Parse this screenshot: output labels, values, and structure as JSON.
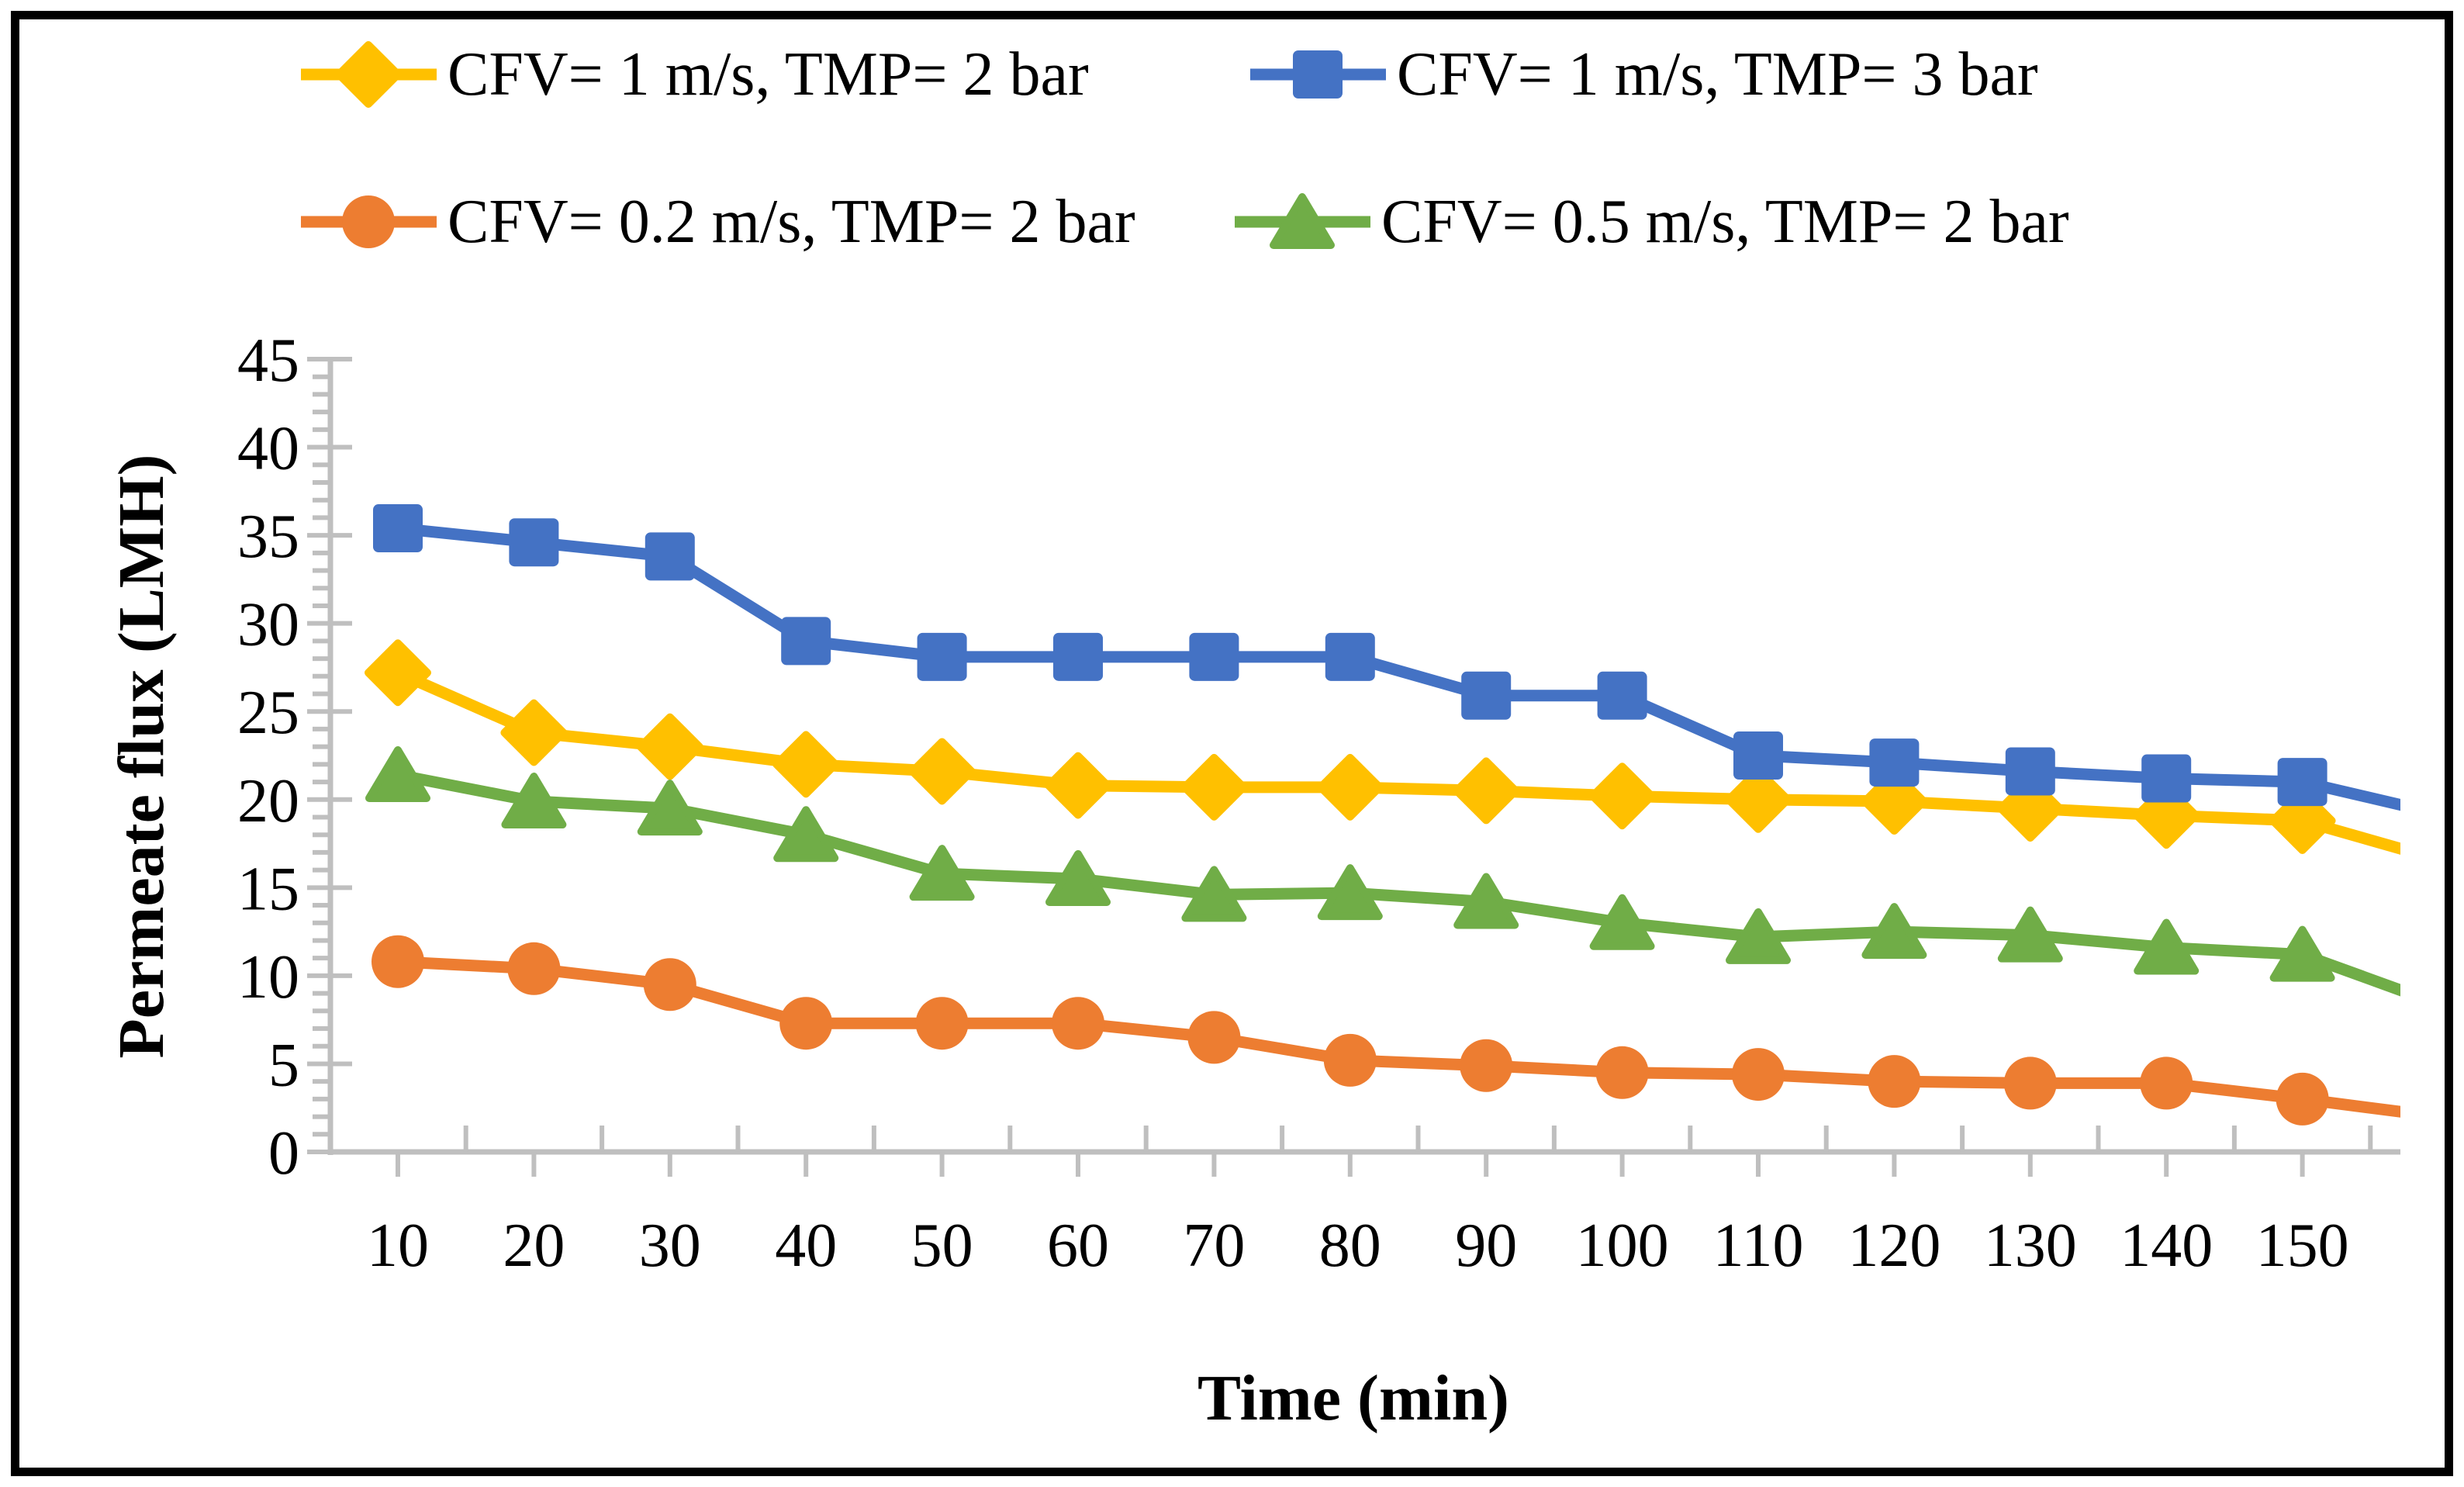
{
  "figure": {
    "background": "#FFFFFF",
    "border_color": "#000000",
    "axis_color": "#BFBFBF",
    "text_color": "#000000"
  },
  "chart_data": {
    "type": "line",
    "title": "",
    "xlabel": "Time (min)",
    "ylabel": "Permeate flux (LMH)",
    "x": [
      10,
      20,
      30,
      40,
      50,
      60,
      70,
      80,
      90,
      100,
      110,
      120,
      130,
      140,
      150
    ],
    "x_tick_labels": [
      "10",
      "20",
      "30",
      "40",
      "50",
      "60",
      "70",
      "80",
      "90",
      "100",
      "110",
      "120",
      "130",
      "140",
      "150"
    ],
    "y_ticks": [
      0,
      5,
      10,
      15,
      20,
      25,
      30,
      35,
      40,
      45
    ],
    "ylim": [
      0,
      45
    ],
    "y_major_step": 5,
    "y_minor_step": 1,
    "grid": false,
    "legend_position": "top",
    "series": [
      {
        "name": "CFV= 1 m/s, TMP= 2 bar",
        "color": "#FFC000",
        "marker": "diamond",
        "values": [
          27.2,
          23.8,
          23.0,
          22.0,
          21.6,
          20.8,
          20.7,
          20.7,
          20.5,
          20.2,
          20.0,
          19.9,
          19.5,
          19.1,
          18.8
        ],
        "clipped_next": 16.6
      },
      {
        "name": "CFV= 1 m/s, TMP= 3 bar",
        "color": "#4472C4",
        "marker": "square",
        "values": [
          35.4,
          34.6,
          33.8,
          29.0,
          28.1,
          28.1,
          28.1,
          28.1,
          25.9,
          25.9,
          22.5,
          22.1,
          21.6,
          21.2,
          21.0
        ],
        "clipped_next": 19.2
      },
      {
        "name": "CFV= 0.2 m/s, TMP= 2 bar",
        "color": "#ED7D31",
        "marker": "circle",
        "values": [
          10.8,
          10.4,
          9.5,
          7.3,
          7.3,
          7.3,
          6.5,
          5.2,
          4.9,
          4.5,
          4.4,
          4.0,
          3.9,
          3.9,
          3.0
        ],
        "clipped_next": 2.0
      },
      {
        "name": "CFV= 0.5 m/s, TMP= 2 bar",
        "color": "#70AD47",
        "marker": "triangle",
        "values": [
          21.4,
          19.9,
          19.5,
          18.0,
          15.8,
          15.5,
          14.6,
          14.7,
          14.2,
          13.0,
          12.2,
          12.5,
          12.3,
          11.6,
          11.2
        ],
        "clipped_next": 8.4
      }
    ]
  }
}
